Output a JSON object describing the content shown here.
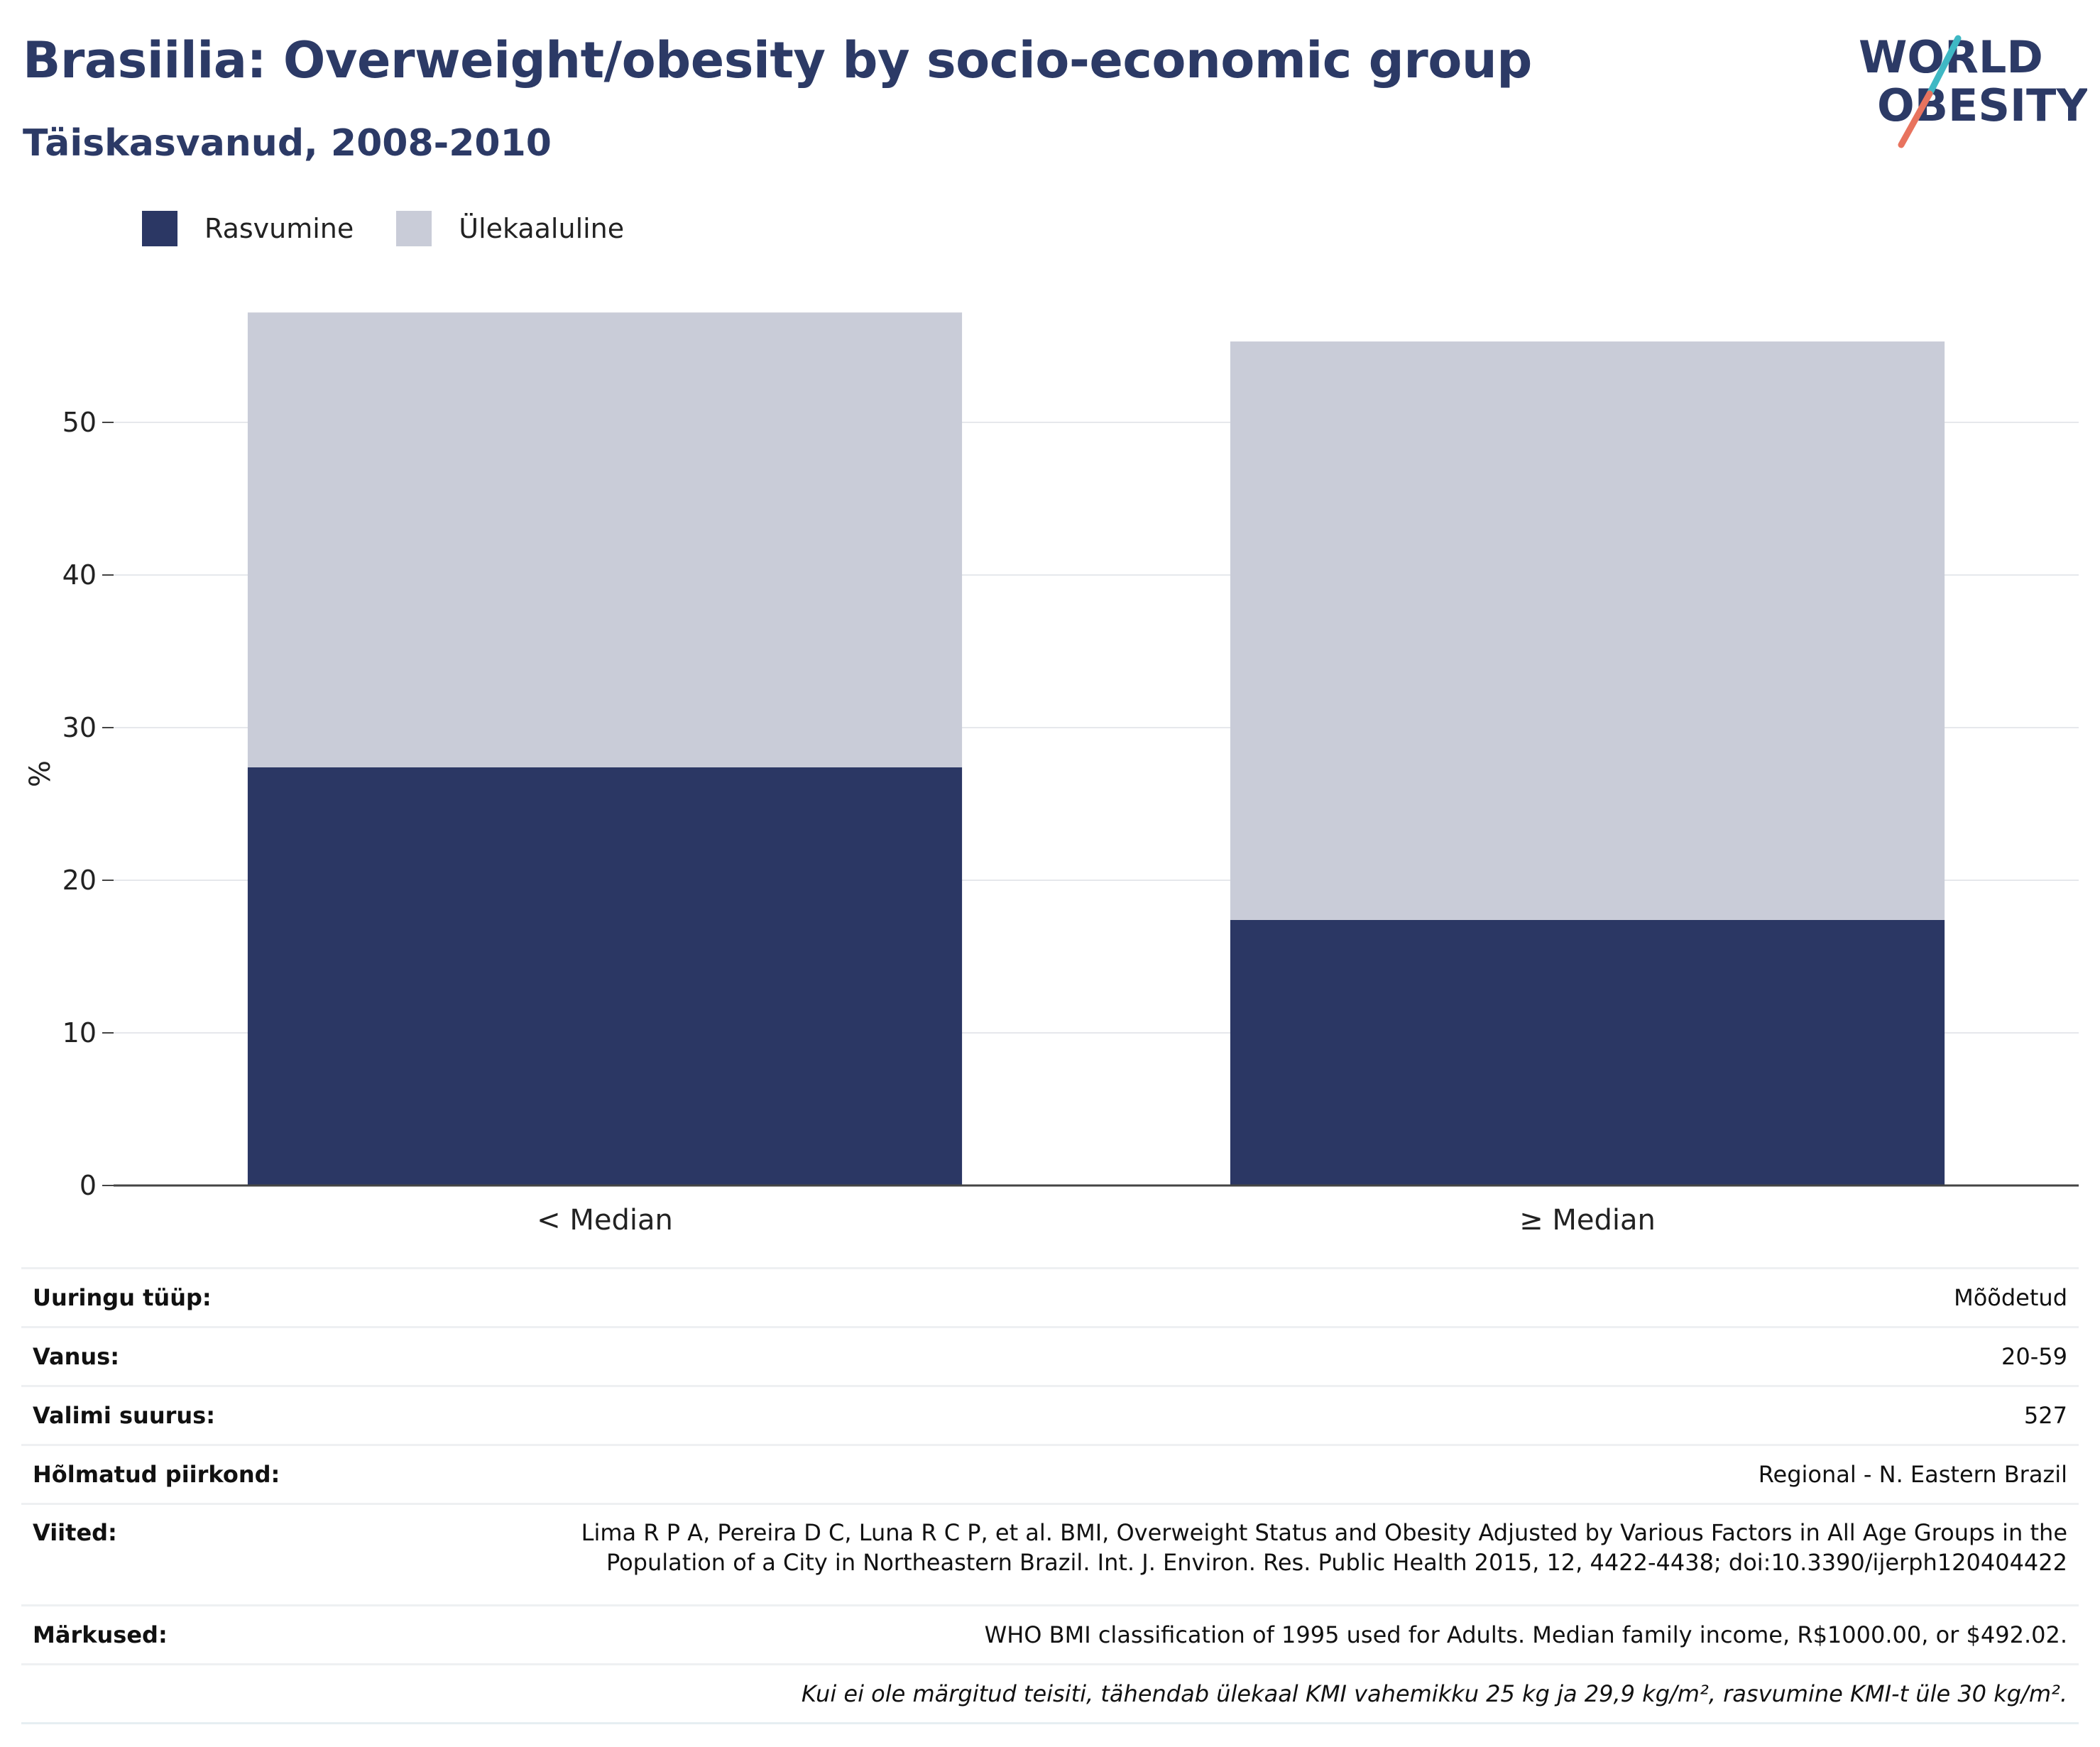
{
  "header": {
    "title": "Brasiilia: Overweight/obesity by socio-economic group",
    "subtitle": "Täiskasvanud, 2008-2010"
  },
  "logo": {
    "line1": "WORLD",
    "line2": "OBESITY",
    "slash_colors": [
      "#3fb8c4",
      "#e8735e"
    ]
  },
  "chart_data": {
    "type": "bar",
    "stacked": true,
    "categories": [
      "< Median",
      "≥ Median"
    ],
    "series": [
      {
        "name": "Rasvumine",
        "color": "#2b3764",
        "values": [
          27.4,
          17.4
        ]
      },
      {
        "name": "Ülekaaluline",
        "color": "#c9ccd8",
        "values": [
          29.8,
          37.9
        ]
      }
    ],
    "ylabel": "%",
    "xlabel": "",
    "ylim": [
      0,
      60
    ],
    "yticks": [
      0,
      10,
      20,
      30,
      40,
      50
    ],
    "grid": true,
    "legend_position": "top-left"
  },
  "info": {
    "rows": [
      {
        "key": "Uuringu tüüp:",
        "value": "Mõõdetud"
      },
      {
        "key": "Vanus:",
        "value": "20-59"
      },
      {
        "key": "Valimi suurus:",
        "value": "527"
      },
      {
        "key": "Hõlmatud piirkond:",
        "value": "Regional - N. Eastern Brazil"
      }
    ],
    "references_key": "Viited:",
    "references_line1": "Lima R P A, Pereira D C, Luna R C P, et al. BMI, Overweight Status and Obesity Adjusted by Various Factors in All Age Groups in the",
    "references_line2": "Population of a City in Northeastern Brazil. Int. J. Environ. Res. Public Health 2015, 12, 4422-4438; doi:10.3390/ijerph120404422",
    "notes_key": "Märkused:",
    "notes_value": "WHO BMI classification of 1995 used for Adults. Median family income, R$1000.00, or $492.02.",
    "footnote": "Kui ei ole märgitud teisiti, tähendab ülekaal KMI vahemikku 25 kg ja 29,9 kg/m², rasvumine KMI-t üle 30 kg/m²."
  }
}
